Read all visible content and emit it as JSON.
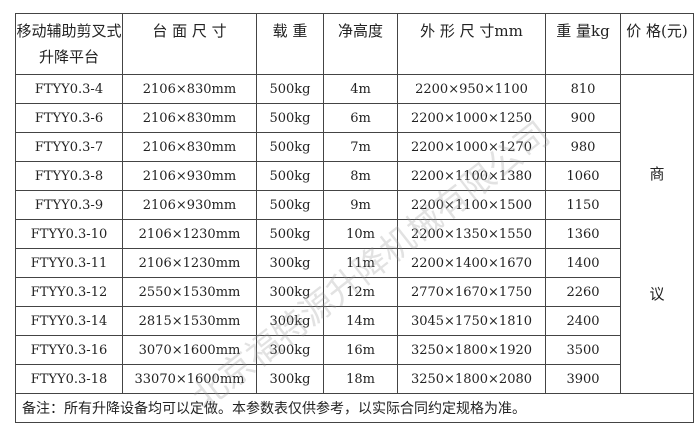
{
  "headers": [
    "移动辅助剪叉式升降平台",
    "台 面 尺 寸",
    "载 重",
    "净高度",
    "外 形 尺 寸mm",
    "重 量kg",
    "价 格(元)"
  ],
  "rows": [
    [
      "FTYY0.3-4",
      "2106×830mm",
      "500kg",
      "4m",
      "2200×950×1100",
      "810"
    ],
    [
      "FTYY0.3-6",
      "2106×830mm",
      "500kg",
      "6m",
      "2200×1000×1250",
      "900"
    ],
    [
      "FTYY0.3-7",
      "2106×830mm",
      "500kg",
      "7m",
      "2200×1000×1270",
      "980"
    ],
    [
      "FTYY0.3-8",
      "2106×930mm",
      "500kg",
      "8m",
      "2200×1100×1380",
      "1060"
    ],
    [
      "FTYY0.3-9",
      "2106×930mm",
      "500kg",
      "9m",
      "2200×1100×1500",
      "1150"
    ],
    [
      "FTYY0.3-10",
      "2106×1230mm",
      "500kg",
      "10m",
      "2200×1350×1550",
      "1360"
    ],
    [
      "FTYY0.3-11",
      "2106×1230mm",
      "300kg",
      "11m",
      "2200×1400×1670",
      "1400"
    ],
    [
      "FTYY0.3-12",
      "2550×1530mm",
      "300kg",
      "12m",
      "2770×1670×1750",
      "2260"
    ],
    [
      "FTYY0.3-14",
      "2815×1530mm",
      "300kg",
      "14m",
      "3045×1750×1810",
      "2400"
    ],
    [
      "FTYY0.3-16",
      "3070×1600mm",
      "300kg",
      "16m",
      "3250×1800×1920",
      "3500"
    ],
    [
      "FTYY0.3-18",
      "33070×1600mm",
      "300kg",
      "18m",
      "3250×1800×2080",
      "3900"
    ]
  ],
  "price_text": "商议",
  "note": "备注：所有升降设备均可以定做。本参数表仅供参考，以实际合同约定规格为准。",
  "watermark": "北京福特源升降机械有限公司"
}
